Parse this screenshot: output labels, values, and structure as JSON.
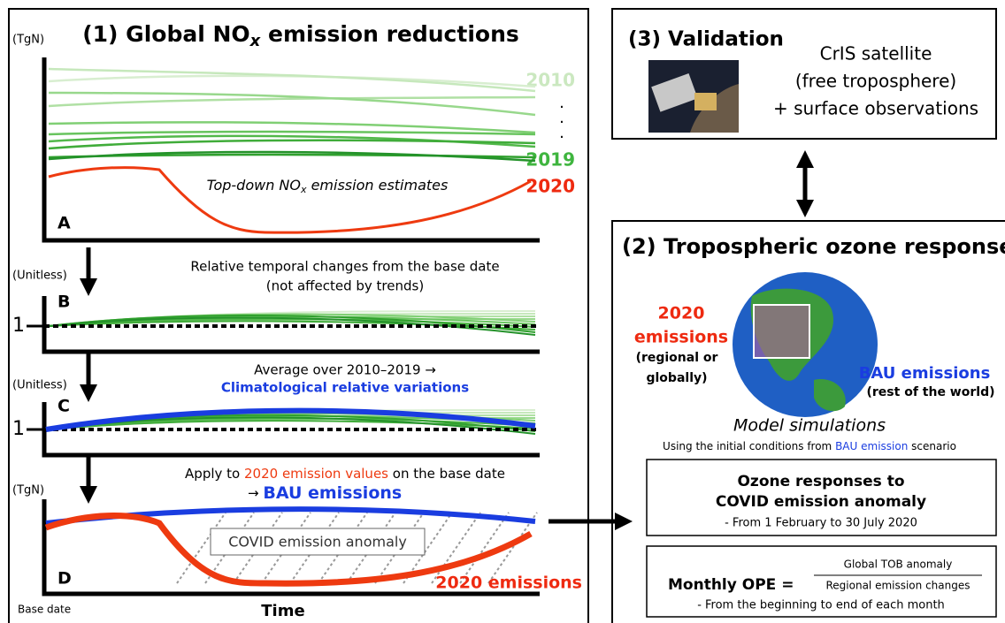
{
  "panel1": {
    "title": {
      "lead": "(1) Global NO",
      "sub": "x",
      "tail": " emission reductions"
    },
    "a": {
      "unit": "(TgN)",
      "first_year": "2010",
      "last_year": "2019",
      "current_year": "2020",
      "caption": {
        "lead": "Top-down NO",
        "sub": "x",
        "tail": " emission estimates"
      },
      "letter": "A"
    },
    "b": {
      "unit": "(Unitless)",
      "line1": "Relative temporal changes from the base date",
      "line2": "(not affected by trends)",
      "one": "1",
      "letter": "B"
    },
    "c": {
      "unit": "(Unitless)",
      "line1": "Average over 2010–2019 →",
      "line2": "Climatological relative variations",
      "one": "1",
      "letter": "C"
    },
    "d": {
      "unit": "(TgN)",
      "line1": {
        "lead": "Apply to ",
        "red": "2020 emission values",
        "tail": " on the base date"
      },
      "line2": {
        "arrow": "→ ",
        "blue": "BAU emissions"
      },
      "anomaly": "COVID emission anomaly",
      "letter": "D",
      "emissions_2020": "2020 emissions",
      "base_date": "Base date",
      "time": "Time"
    }
  },
  "panel3": {
    "title": "(3) Validation",
    "line1": "CrIS satellite",
    "line2": "(free troposphere)",
    "line3": "+ surface observations"
  },
  "panel2": {
    "title": "(2) Tropospheric ozone response",
    "left": {
      "year": "2020",
      "word": "emissions",
      "line3": "(regional or",
      "line4": "globally)"
    },
    "right": {
      "bau": "BAU emissions",
      "rest": "(rest of the world)"
    },
    "model": "Model simulations",
    "initial": {
      "lead": "Using the initial conditions from ",
      "blue": "BAU emission",
      "tail": " scenario"
    },
    "box1": {
      "line1": "Ozone responses to",
      "line2": "COVID emission anomaly",
      "line3": "- From 1 February to 30 July 2020"
    },
    "box2": {
      "label": "Monthly OPE =",
      "numerator": "Global TOB anomaly",
      "denominator": "Regional emission changes",
      "note": "- From the beginning to end of each month"
    }
  }
}
